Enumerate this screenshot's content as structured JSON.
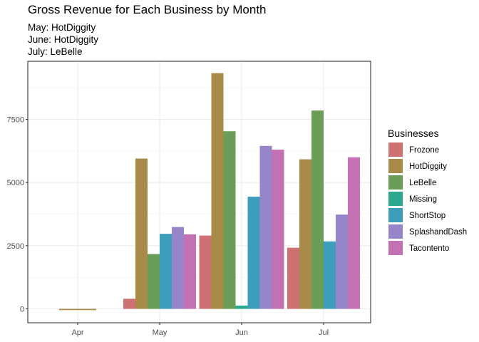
{
  "chart_data": {
    "type": "bar",
    "title": "Gross Revenue for Each Business by Month",
    "subtitle_lines": [
      "May: HotDiggity",
      "June: HotDiggity",
      "July: LeBelle"
    ],
    "categories": [
      "Apr",
      "May",
      "Jun",
      "Jul"
    ],
    "legend_title": "Businesses",
    "legend_position": "right",
    "grid": true,
    "ylim": [
      -550,
      9800
    ],
    "yticks": [
      0,
      2500,
      5000,
      7500
    ],
    "ytick_labels": [
      "0",
      "2500",
      "5000",
      "7500"
    ],
    "series": [
      {
        "name": "Frozone",
        "color": "#CD7173",
        "values": [
          null,
          400,
          2900,
          2420
        ]
      },
      {
        "name": "HotDiggity",
        "color": "#A88B49",
        "values": [
          -50,
          5950,
          9330,
          5920
        ]
      },
      {
        "name": "LeBelle",
        "color": "#6A9E58",
        "values": [
          null,
          2170,
          7030,
          7850
        ]
      },
      {
        "name": "Missing",
        "color": "#2BA88E",
        "values": [
          null,
          null,
          130,
          null
        ]
      },
      {
        "name": "ShortStop",
        "color": "#3F9DBC",
        "values": [
          null,
          2970,
          4440,
          2670
        ]
      },
      {
        "name": "SplashandDash",
        "color": "#9686C9",
        "values": [
          null,
          3240,
          6450,
          3730
        ]
      },
      {
        "name": "Tacontento",
        "color": "#C471B3",
        "values": [
          null,
          2950,
          6300,
          6000
        ]
      }
    ]
  }
}
